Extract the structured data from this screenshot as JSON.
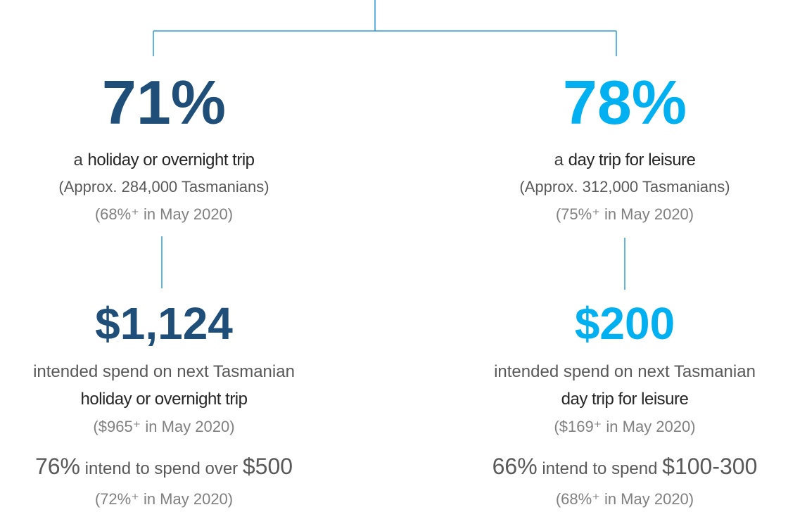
{
  "columns": [
    {
      "percent": "71%",
      "prefix": "a",
      "label": "holiday or overnight trip",
      "approx": "(Approx. 284,000 Tasmanians)",
      "previous": "(68%⁺ in May 2020)",
      "amount": "$1,124",
      "spend_text": "intended spend on next Tasmanian",
      "spend_label": "holiday or overnight trip",
      "spend_previous": "($965⁺ in May 2020)",
      "intend_percent": "76%",
      "intend_text": "intend to spend over",
      "intend_amount": "$500",
      "intend_previous": "(72%⁺ in May 2020)"
    },
    {
      "percent": "78%",
      "prefix": "a",
      "label": "day trip for leisure",
      "approx": "(Approx. 312,000 Tasmanians)",
      "previous": "(75%⁺ in May 2020)",
      "amount": "$200",
      "spend_text": "intended spend on next Tasmanian",
      "spend_label": "day trip for leisure",
      "spend_previous": "($169⁺ in May 2020)",
      "intend_percent": "66%",
      "intend_text": "intend to spend",
      "intend_amount": "$100-300",
      "intend_previous": "(68%⁺ in May 2020)"
    }
  ]
}
